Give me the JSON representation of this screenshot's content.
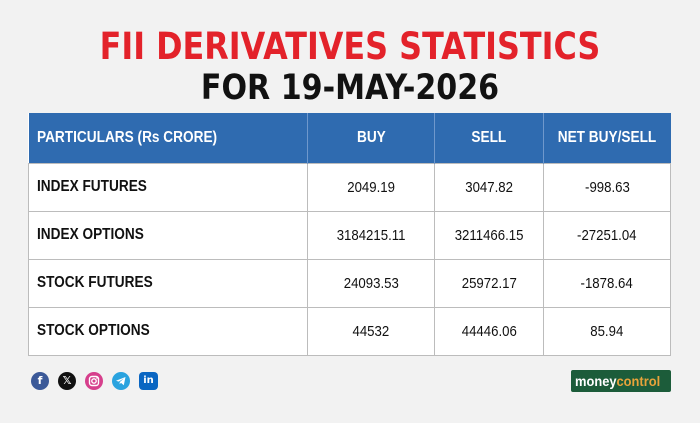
{
  "title": {
    "line1": "FII DERIVATIVES STATISTICS",
    "line2": "FOR 19-MAY-2026"
  },
  "colors": {
    "title_red": "#e3222a",
    "header_blue": "#2f6bb0",
    "brand_green": "#1c5c3a"
  },
  "chart_data": {
    "type": "table",
    "columns": [
      "PARTICULARS (Rs CRORE)",
      "BUY",
      "SELL",
      "NET BUY/SELL"
    ],
    "rows": [
      [
        "INDEX FUTURES",
        "2049.19",
        "3047.82",
        "-998.63"
      ],
      [
        "INDEX OPTIONS",
        "3184215.11",
        "3211466.15",
        "-27251.04"
      ],
      [
        "STOCK FUTURES",
        "24093.53",
        "25972.17",
        "-1878.64"
      ],
      [
        "STOCK OPTIONS",
        "44532",
        "44446.06",
        "85.94"
      ]
    ]
  },
  "footer": {
    "social_icons": [
      "facebook-icon",
      "x-icon",
      "instagram-icon",
      "telegram-icon",
      "linkedin-icon"
    ],
    "brand_part1": "money",
    "brand_part2": "control"
  }
}
